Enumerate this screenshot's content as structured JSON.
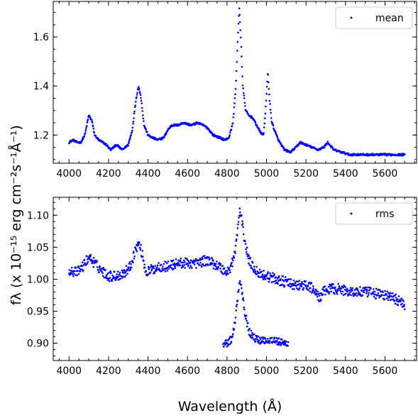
{
  "chart_data": [
    {
      "type": "scatter",
      "panel": "top",
      "xlim": [
        3920,
        5760
      ],
      "ylim": [
        1.085,
        1.745
      ],
      "xticks": [
        4000,
        4200,
        4400,
        4600,
        4800,
        5000,
        5200,
        5400,
        5600
      ],
      "xtick_labels": [
        "4000",
        "4200",
        "4400",
        "4600",
        "4800",
        "5000",
        "5200",
        "5400",
        "5600"
      ],
      "yticks": [
        1.2,
        1.4,
        1.6
      ],
      "ytick_labels": [
        "1.2",
        "1.4",
        "1.6"
      ],
      "legend": {
        "position": "upper right",
        "label": "mean"
      },
      "color": "#0000ff",
      "series": [
        {
          "name": "mean",
          "x_range": [
            4000,
            5700
          ],
          "profile": [
            [
              4000,
              1.17
            ],
            [
              4020,
              1.18
            ],
            [
              4040,
              1.17
            ],
            [
              4060,
              1.17
            ],
            [
              4080,
              1.2
            ],
            [
              4100,
              1.28
            ],
            [
              4115,
              1.26
            ],
            [
              4130,
              1.2
            ],
            [
              4150,
              1.18
            ],
            [
              4170,
              1.17
            ],
            [
              4190,
              1.16
            ],
            [
              4210,
              1.14
            ],
            [
              4240,
              1.16
            ],
            [
              4270,
              1.14
            ],
            [
              4300,
              1.16
            ],
            [
              4320,
              1.22
            ],
            [
              4340,
              1.35
            ],
            [
              4352,
              1.4
            ],
            [
              4365,
              1.35
            ],
            [
              4380,
              1.24
            ],
            [
              4400,
              1.2
            ],
            [
              4420,
              1.19
            ],
            [
              4450,
              1.18
            ],
            [
              4480,
              1.19
            ],
            [
              4500,
              1.22
            ],
            [
              4520,
              1.24
            ],
            [
              4550,
              1.24
            ],
            [
              4580,
              1.25
            ],
            [
              4620,
              1.24
            ],
            [
              4650,
              1.25
            ],
            [
              4680,
              1.24
            ],
            [
              4700,
              1.23
            ],
            [
              4730,
              1.2
            ],
            [
              4760,
              1.19
            ],
            [
              4790,
              1.18
            ],
            [
              4810,
              1.19
            ],
            [
              4830,
              1.25
            ],
            [
              4845,
              1.4
            ],
            [
              4855,
              1.6
            ],
            [
              4862,
              1.72
            ],
            [
              4870,
              1.6
            ],
            [
              4880,
              1.4
            ],
            [
              4895,
              1.3
            ],
            [
              4910,
              1.28
            ],
            [
              4930,
              1.27
            ],
            [
              4950,
              1.24
            ],
            [
              4970,
              1.21
            ],
            [
              4985,
              1.2
            ],
            [
              4995,
              1.3
            ],
            [
              5007,
              1.46
            ],
            [
              5015,
              1.35
            ],
            [
              5025,
              1.26
            ],
            [
              5040,
              1.22
            ],
            [
              5060,
              1.18
            ],
            [
              5090,
              1.14
            ],
            [
              5120,
              1.13
            ],
            [
              5150,
              1.15
            ],
            [
              5170,
              1.17
            ],
            [
              5200,
              1.16
            ],
            [
              5230,
              1.15
            ],
            [
              5260,
              1.14
            ],
            [
              5290,
              1.15
            ],
            [
              5310,
              1.17
            ],
            [
              5340,
              1.14
            ],
            [
              5380,
              1.13
            ],
            [
              5420,
              1.12
            ],
            [
              5460,
              1.12
            ],
            [
              5500,
              1.12
            ],
            [
              5540,
              1.12
            ],
            [
              5580,
              1.12
            ],
            [
              5620,
              1.12
            ],
            [
              5660,
              1.12
            ],
            [
              5700,
              1.12
            ]
          ],
          "noise": 0.004
        }
      ]
    },
    {
      "type": "scatter",
      "panel": "bottom",
      "xlim": [
        3920,
        5760
      ],
      "ylim": [
        0.873,
        1.128
      ],
      "xticks": [
        4000,
        4200,
        4400,
        4600,
        4800,
        5000,
        5200,
        5400,
        5600
      ],
      "xtick_labels": [
        "4000",
        "4200",
        "4400",
        "4600",
        "4800",
        "5000",
        "5200",
        "5400",
        "5600"
      ],
      "yticks": [
        0.9,
        0.95,
        1.0,
        1.05,
        1.1
      ],
      "ytick_labels": [
        "0.90",
        "0.95",
        "1.00",
        "1.05",
        "1.10"
      ],
      "legend": {
        "position": "upper right",
        "label": "rms"
      },
      "color": "#0000ff",
      "series": [
        {
          "name": "rms",
          "x_range": [
            4000,
            5700
          ],
          "profile": [
            [
              4000,
              1.015
            ],
            [
              4040,
              1.01
            ],
            [
              4070,
              1.02
            ],
            [
              4100,
              1.035
            ],
            [
              4130,
              1.025
            ],
            [
              4160,
              1.015
            ],
            [
              4200,
              1.005
            ],
            [
              4240,
              1.005
            ],
            [
              4280,
              1.01
            ],
            [
              4310,
              1.02
            ],
            [
              4340,
              1.05
            ],
            [
              4355,
              1.055
            ],
            [
              4370,
              1.04
            ],
            [
              4390,
              1.01
            ],
            [
              4420,
              1.015
            ],
            [
              4460,
              1.02
            ],
            [
              4500,
              1.02
            ],
            [
              4550,
              1.025
            ],
            [
              4600,
              1.025
            ],
            [
              4650,
              1.025
            ],
            [
              4700,
              1.03
            ],
            [
              4730,
              1.025
            ],
            [
              4760,
              1.02
            ],
            [
              4800,
              1.01
            ],
            [
              4820,
              1.02
            ],
            [
              4840,
              1.04
            ],
            [
              4855,
              1.08
            ],
            [
              4865,
              1.11
            ],
            [
              4875,
              1.09
            ],
            [
              4890,
              1.06
            ],
            [
              4910,
              1.03
            ],
            [
              4930,
              1.02
            ],
            [
              4960,
              1.01
            ],
            [
              5000,
              1.005
            ],
            [
              5050,
              1.0
            ],
            [
              5100,
              0.995
            ],
            [
              5150,
              0.99
            ],
            [
              5200,
              0.99
            ],
            [
              5240,
              0.985
            ],
            [
              5265,
              0.97
            ],
            [
              5290,
              0.98
            ],
            [
              5320,
              0.985
            ],
            [
              5360,
              0.985
            ],
            [
              5400,
              0.982
            ],
            [
              5450,
              0.98
            ],
            [
              5500,
              0.98
            ],
            [
              5550,
              0.978
            ],
            [
              5600,
              0.975
            ],
            [
              5650,
              0.97
            ],
            [
              5680,
              0.965
            ],
            [
              5700,
              0.96
            ]
          ],
          "noise": 0.008
        },
        {
          "name": "rms",
          "x_range": [
            4780,
            5110
          ],
          "profile": [
            [
              4780,
              0.9
            ],
            [
              4800,
              0.9
            ],
            [
              4820,
              0.905
            ],
            [
              4840,
              0.93
            ],
            [
              4855,
              0.975
            ],
            [
              4865,
              1.0
            ],
            [
              4875,
              0.985
            ],
            [
              4890,
              0.95
            ],
            [
              4910,
              0.92
            ],
            [
              4930,
              0.91
            ],
            [
              4960,
              0.905
            ],
            [
              5000,
              0.905
            ],
            [
              5040,
              0.905
            ],
            [
              5080,
              0.9
            ],
            [
              5110,
              0.9
            ]
          ],
          "noise": 0.006
        }
      ]
    }
  ],
  "labels": {
    "xlabel": "Wavelength (Å)",
    "ylabel": "fλ (x 10⁻¹⁵ erg cm⁻²s⁻¹Å⁻¹)"
  }
}
